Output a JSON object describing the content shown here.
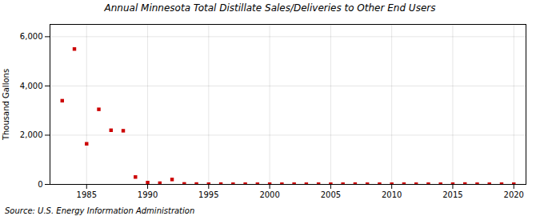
{
  "chart_data": {
    "type": "scatter",
    "title": "Annual Minnesota Total Distillate Sales/Deliveries to Other End Users",
    "ylabel": "Thousand Gallons",
    "source": "Source: U.S. Energy Information Administration",
    "x": [
      1983,
      1984,
      1985,
      1986,
      1987,
      1988,
      1989,
      1990,
      1991,
      1992,
      1993,
      1994,
      1995,
      1996,
      1997,
      1998,
      1999,
      2000,
      2001,
      2002,
      2003,
      2004,
      2005,
      2006,
      2007,
      2008,
      2009,
      2010,
      2011,
      2012,
      2013,
      2014,
      2015,
      2016,
      2017,
      2018,
      2019,
      2020
    ],
    "values": [
      3400,
      5500,
      1650,
      3050,
      2200,
      2180,
      300,
      75,
      50,
      200,
      20,
      15,
      10,
      12,
      8,
      10,
      8,
      10,
      8,
      10,
      8,
      10,
      8,
      10,
      12,
      8,
      10,
      8,
      10,
      8,
      10,
      8,
      10,
      15,
      8,
      8,
      10,
      8
    ],
    "color": "#cc0000",
    "marker": "square",
    "xlim": [
      1982,
      2021
    ],
    "xticks": [
      1985,
      1990,
      1995,
      2000,
      2005,
      2010,
      2015,
      2020
    ],
    "ylim": [
      0,
      6500
    ],
    "yticks": [
      0,
      {
        "value": 2000,
        "label": "2,000"
      },
      {
        "value": 4000,
        "label": "4,000"
      },
      {
        "value": 6000,
        "label": "6,000"
      }
    ],
    "grid": true
  }
}
